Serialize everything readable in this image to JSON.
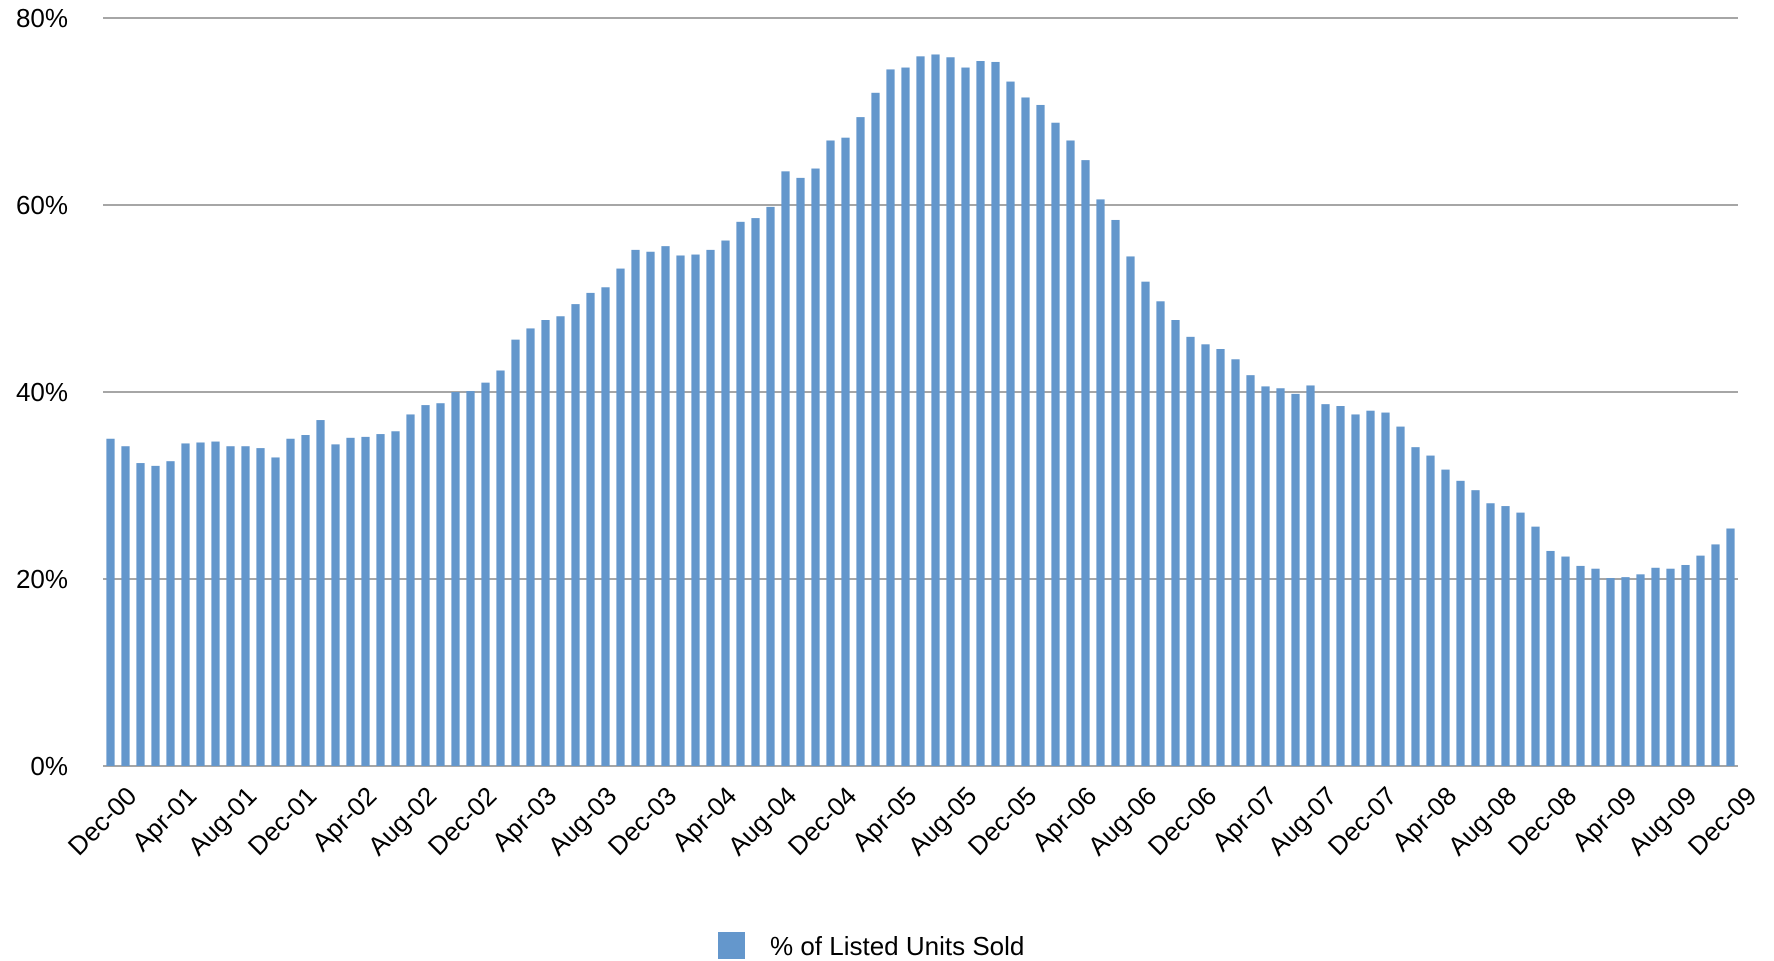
{
  "chart_data": {
    "type": "bar",
    "title": "",
    "xlabel": "",
    "ylabel": "",
    "ylim": [
      0,
      80
    ],
    "y_ticks": [
      "0%",
      "20%",
      "40%",
      "60%",
      "80%"
    ],
    "y_tick_values": [
      0,
      20,
      40,
      60,
      80
    ],
    "grid": "horizontal",
    "legend_position": "bottom-center",
    "bar_color": "#6497cc",
    "grid_color": "#a6a6a6",
    "x_tick_labels": [
      "Dec-00",
      "Apr-01",
      "Aug-01",
      "Dec-01",
      "Apr-02",
      "Aug-02",
      "Dec-02",
      "Apr-03",
      "Aug-03",
      "Dec-03",
      "Apr-04",
      "Aug-04",
      "Dec-04",
      "Apr-05",
      "Aug-05",
      "Dec-05",
      "Apr-06",
      "Aug-06",
      "Dec-06",
      "Apr-07",
      "Aug-07",
      "Dec-07",
      "Apr-08",
      "Aug-08",
      "Dec-08",
      "Apr-09",
      "Aug-09",
      "Dec-09"
    ],
    "series": [
      {
        "name": "% of Listed Units Sold",
        "values": [
          35.0,
          34.2,
          32.4,
          32.1,
          32.6,
          34.5,
          34.6,
          34.7,
          34.2,
          34.2,
          34.0,
          33.0,
          35.0,
          35.4,
          37.0,
          34.4,
          35.1,
          35.2,
          35.5,
          35.8,
          37.6,
          38.6,
          38.8,
          40.0,
          40.1,
          41.0,
          42.3,
          45.6,
          46.8,
          47.7,
          48.1,
          49.4,
          50.6,
          51.2,
          53.2,
          55.2,
          55.0,
          55.6,
          54.6,
          54.7,
          55.2,
          56.2,
          58.2,
          58.6,
          59.8,
          63.6,
          62.9,
          63.9,
          66.9,
          67.2,
          69.4,
          72.0,
          74.5,
          74.7,
          75.9,
          76.1,
          75.8,
          74.7,
          75.4,
          75.3,
          73.2,
          71.5,
          70.7,
          68.8,
          66.9,
          64.8,
          60.6,
          58.4,
          54.5,
          51.8,
          49.7,
          47.7,
          45.9,
          45.1,
          44.6,
          43.5,
          41.8,
          40.6,
          40.4,
          39.8,
          40.7,
          38.7,
          38.5,
          37.6,
          38.0,
          37.8,
          36.3,
          34.1,
          33.2,
          31.7,
          30.5,
          29.5,
          28.1,
          27.8,
          27.1,
          25.6,
          23.0,
          22.4,
          21.4,
          21.1,
          20.1,
          20.2,
          20.5,
          21.2,
          21.1,
          21.5,
          22.5,
          23.7,
          25.4
        ]
      }
    ]
  },
  "legend": {
    "label": "% of Listed Units Sold"
  }
}
